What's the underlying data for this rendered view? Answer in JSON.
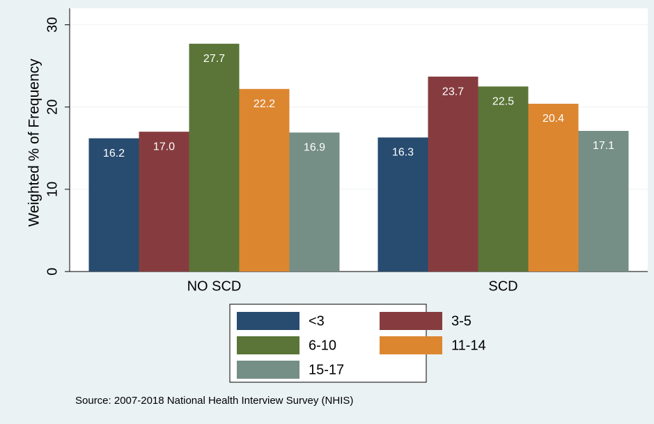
{
  "chart_data": {
    "type": "bar",
    "categories": [
      "NO SCD",
      "SCD"
    ],
    "ylabel": "Weighted % of Frequency",
    "ylim": [
      0,
      32
    ],
    "yticks": [
      0,
      10,
      20,
      30
    ],
    "grid": true,
    "series": [
      {
        "name": "<3",
        "color": "#284b70",
        "values": [
          16.2,
          16.3
        ],
        "value_labels": [
          "16.2",
          "16.3"
        ]
      },
      {
        "name": "3-5",
        "color": "#863c3f",
        "values": [
          17,
          23.7
        ],
        "value_labels": [
          "17.0",
          "23.7"
        ]
      },
      {
        "name": "6-10",
        "color": "#5a7537",
        "values": [
          27.7,
          22.5
        ],
        "value_labels": [
          "27.7",
          "22.5"
        ]
      },
      {
        "name": "11-14",
        "color": "#dd8630",
        "values": [
          22.2,
          20.4
        ],
        "value_labels": [
          "22.2",
          "20.4"
        ]
      },
      {
        "name": "15-17",
        "color": "#758e86",
        "values": [
          16.9,
          17.1
        ],
        "value_labels": [
          "16.9",
          "17.1"
        ]
      }
    ],
    "note": "Source: 2007-2018 National Health Interview Survey (NHIS)"
  }
}
